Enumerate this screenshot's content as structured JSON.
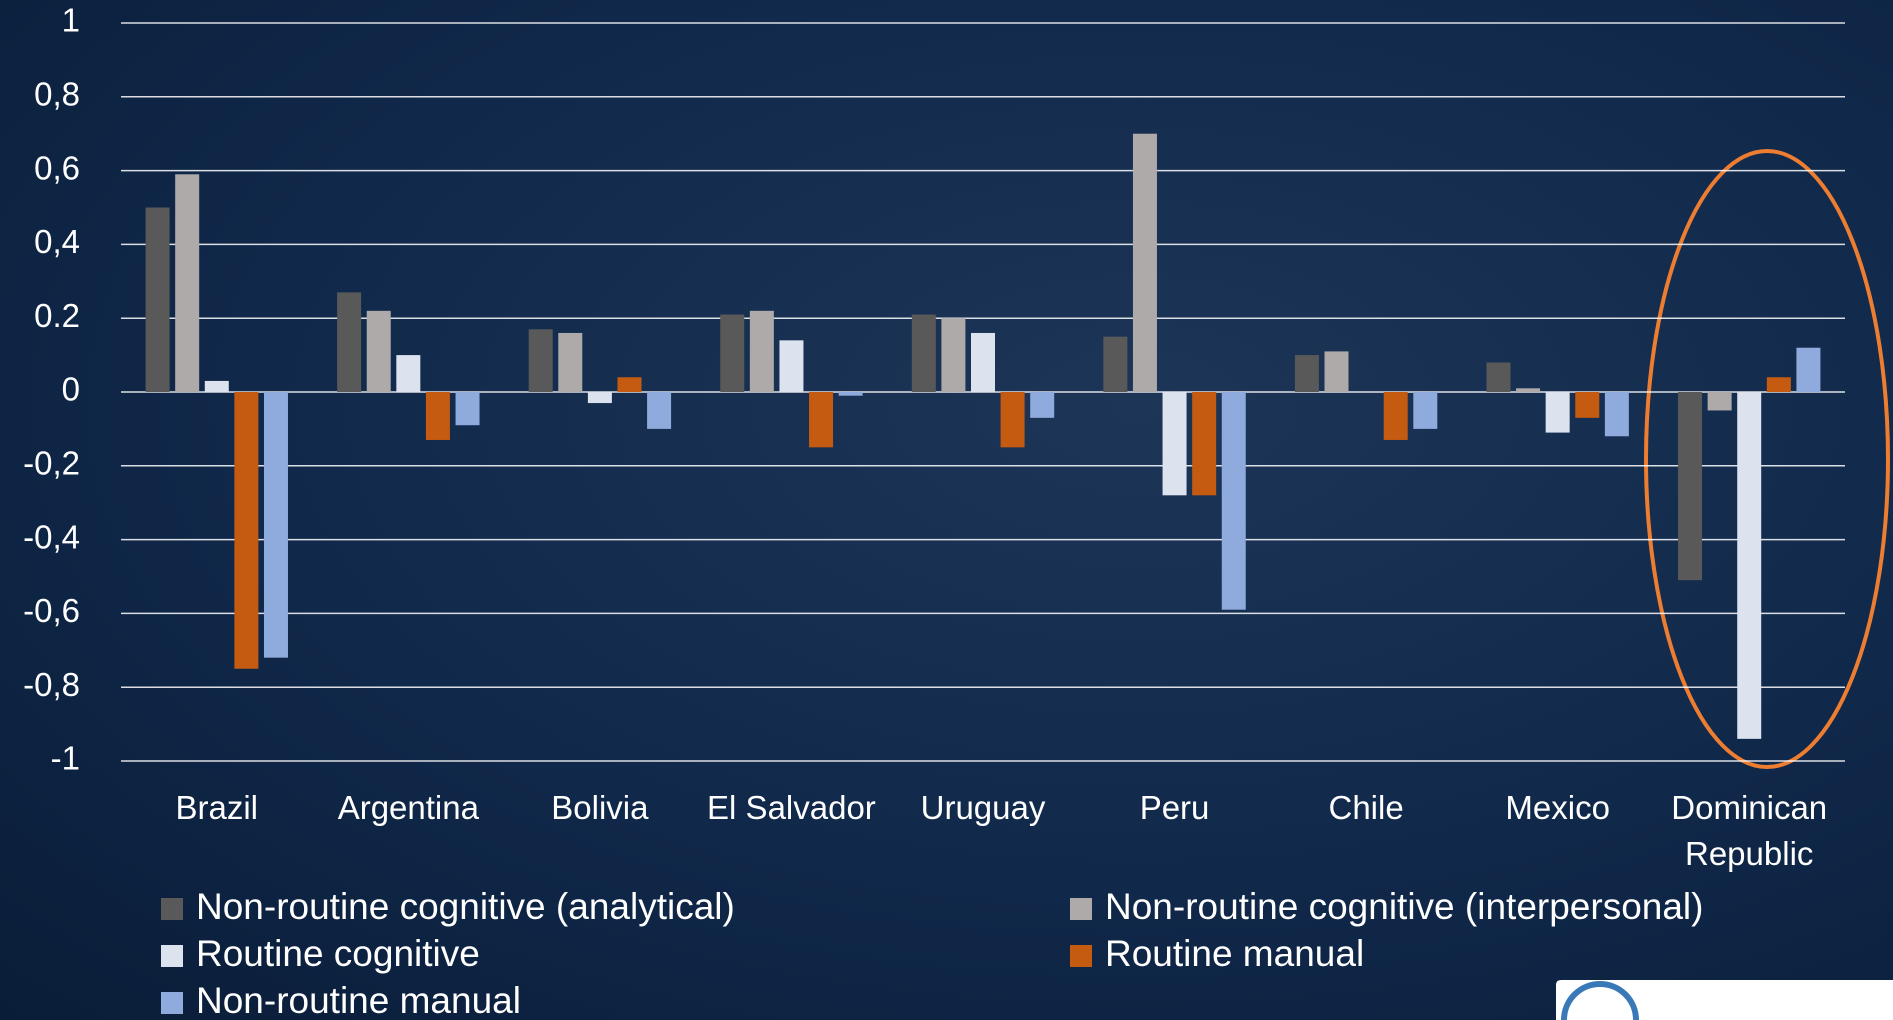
{
  "chart_data": {
    "type": "bar",
    "categories": [
      "Brazil",
      "Argentina",
      "Bolivia",
      "El Salvador",
      "Uruguay",
      "Peru",
      "Chile",
      "Mexico",
      "Dominican Republic"
    ],
    "series": [
      {
        "name": "Non-routine cognitive (analytical)",
        "color": "#595959",
        "values": [
          0.5,
          0.27,
          0.17,
          0.21,
          0.21,
          0.15,
          0.1,
          0.08,
          -0.51
        ]
      },
      {
        "name": "Non-routine cognitive (interpersonal)",
        "color": "#aeaaaa",
        "values": [
          0.59,
          0.22,
          0.16,
          0.22,
          0.2,
          0.7,
          0.11,
          0.01,
          -0.05
        ]
      },
      {
        "name": "Routine cognitive",
        "color": "#dce3ee",
        "values": [
          0.03,
          0.1,
          -0.03,
          0.14,
          0.16,
          -0.28,
          0.0,
          -0.11,
          -0.94
        ]
      },
      {
        "name": "Routine manual",
        "color": "#c55a11",
        "values": [
          -0.75,
          -0.13,
          0.04,
          -0.15,
          -0.15,
          -0.28,
          -0.13,
          -0.07,
          0.04
        ]
      },
      {
        "name": "Non-routine manual",
        "color": "#8faadc",
        "values": [
          -0.72,
          -0.09,
          -0.1,
          -0.01,
          -0.07,
          -0.59,
          -0.1,
          -0.12,
          0.12
        ]
      }
    ],
    "ylim": [
      -1,
      1
    ],
    "yticks": [
      -1,
      {
        "value": -0.8,
        "label": "-0,8"
      },
      {
        "value": -0.6,
        "label": "-0,6"
      },
      {
        "value": -0.4,
        "label": "-0,4"
      },
      {
        "value": -0.2,
        "label": "-0,2"
      },
      0,
      {
        "value": 0.2,
        "label": "0.2"
      },
      {
        "value": 0.4,
        "label": "0,4"
      },
      {
        "value": 0.6,
        "label": "0,6"
      },
      {
        "value": 0.8,
        "label": "0,8"
      },
      1
    ],
    "grid": true
  }
}
